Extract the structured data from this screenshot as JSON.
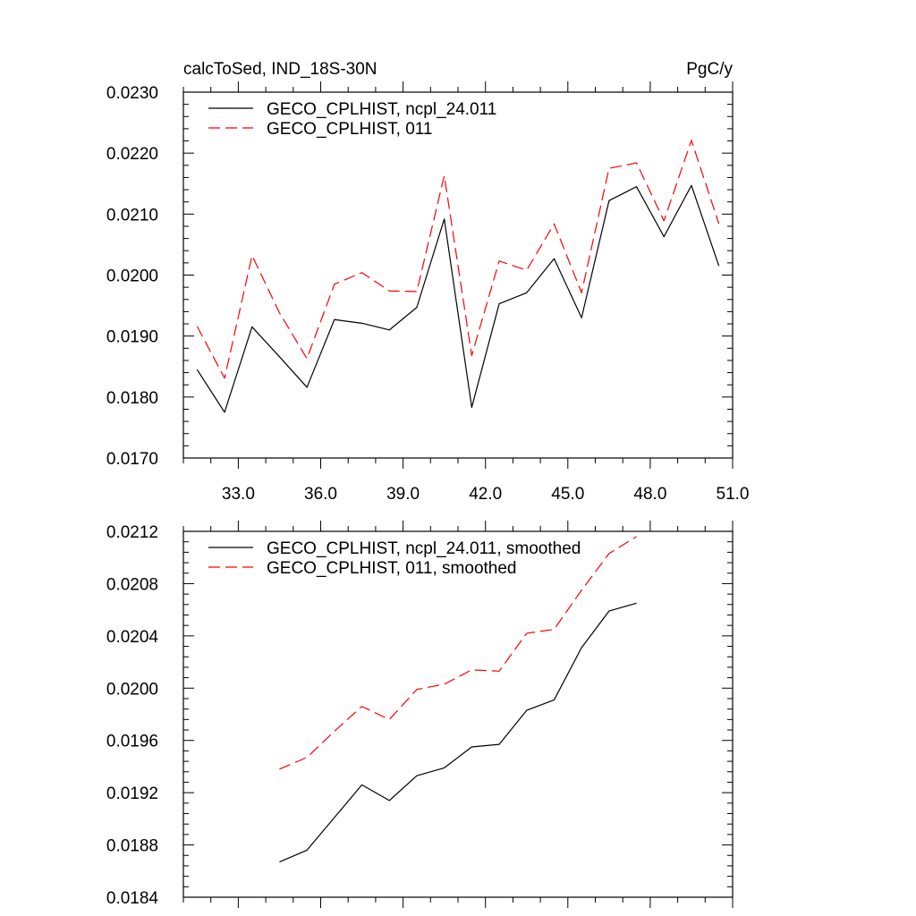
{
  "figure": {
    "title_left": "calcToSed, IND_18S-30N",
    "title_right": "PgC/y"
  },
  "chart_data": [
    {
      "type": "line",
      "title": "calcToSed, IND_18S-30N",
      "units": "PgC/y",
      "xlim": [
        31.0,
        51.0
      ],
      "ylim": [
        0.017,
        0.023
      ],
      "xticks": [
        33.0,
        36.0,
        39.0,
        42.0,
        45.0,
        48.0,
        51.0
      ],
      "xtick_labels": [
        "33.0",
        "36.0",
        "39.0",
        "42.0",
        "45.0",
        "48.0",
        "51.0"
      ],
      "yticks": [
        0.017,
        0.018,
        0.019,
        0.02,
        0.021,
        0.022,
        0.023
      ],
      "ytick_labels": [
        "0.0170",
        "0.0180",
        "0.0190",
        "0.0200",
        "0.0210",
        "0.0220",
        "0.0230"
      ],
      "legend_position": "top-left",
      "x": [
        31.5,
        32.5,
        33.5,
        34.5,
        35.5,
        36.5,
        37.5,
        38.5,
        39.5,
        40.5,
        41.5,
        42.5,
        43.5,
        44.5,
        45.5,
        46.5,
        47.5,
        48.5,
        49.5,
        50.5
      ],
      "series": [
        {
          "name": "GECO_CPLHIST, ncpl_24.011",
          "color": "#000000",
          "dash": "solid",
          "values": [
            0.01845,
            0.01775,
            0.01915,
            0.01866,
            0.01816,
            0.01927,
            0.01921,
            0.0191,
            0.01947,
            0.02092,
            0.01783,
            0.01953,
            0.01971,
            0.02027,
            0.0193,
            0.02122,
            0.02145,
            0.02063,
            0.02147,
            0.02015
          ]
        },
        {
          "name": "GECO_CPLHIST, 011",
          "color": "#ff0000",
          "dash": "dashed",
          "values": [
            0.01916,
            0.01831,
            0.02032,
            0.01938,
            0.01863,
            0.01985,
            0.02004,
            0.01974,
            0.01973,
            0.02163,
            0.01868,
            0.02023,
            0.02008,
            0.02084,
            0.01971,
            0.02175,
            0.02184,
            0.02089,
            0.02221,
            0.02084
          ]
        }
      ]
    },
    {
      "type": "line",
      "xlim": [
        31.0,
        51.0
      ],
      "ylim": [
        0.0184,
        0.0212
      ],
      "xticks": [
        33.0,
        36.0,
        39.0,
        42.0,
        45.0,
        48.0,
        51.0
      ],
      "yticks": [
        0.0184,
        0.0188,
        0.0192,
        0.0196,
        0.02,
        0.0204,
        0.0208,
        0.0212
      ],
      "ytick_labels": [
        "0.0184",
        "0.0188",
        "0.0192",
        "0.0196",
        "0.0200",
        "0.0204",
        "0.0208",
        "0.0212"
      ],
      "legend_position": "top-left",
      "x": [
        34.5,
        35.5,
        36.5,
        37.5,
        38.5,
        39.5,
        40.5,
        41.5,
        42.5,
        43.5,
        44.5,
        45.5,
        46.5,
        47.5
      ],
      "series": [
        {
          "name": "GECO_CPLHIST, ncpl_24.011, smoothed",
          "color": "#000000",
          "dash": "solid",
          "values": [
            0.01867,
            0.01876,
            0.01901,
            0.01926,
            0.01914,
            0.01933,
            0.01939,
            0.01955,
            0.01957,
            0.01983,
            0.01991,
            0.02031,
            0.02059,
            0.02065
          ]
        },
        {
          "name": "GECO_CPLHIST, 011, smoothed",
          "color": "#ff0000",
          "dash": "dashed",
          "values": [
            0.01938,
            0.01947,
            0.01967,
            0.01986,
            0.01976,
            0.01999,
            0.02003,
            0.02014,
            0.02013,
            0.02042,
            0.02045,
            0.02075,
            0.02103,
            0.02116
          ]
        }
      ]
    }
  ]
}
